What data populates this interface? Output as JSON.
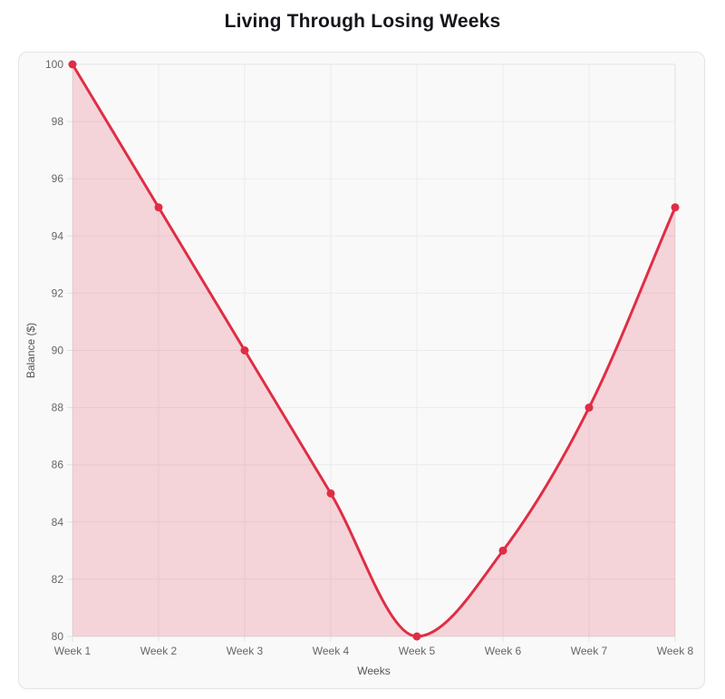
{
  "page": {
    "title": "Living Through Losing Weeks"
  },
  "chart_data": {
    "type": "area",
    "title": "Living Through Losing Weeks",
    "categories": [
      "Week 1",
      "Week 2",
      "Week 3",
      "Week 4",
      "Week 5",
      "Week 6",
      "Week 7",
      "Week 8"
    ],
    "values": [
      100,
      95,
      90,
      85,
      80,
      83,
      88,
      95
    ],
    "series_name": "Balance",
    "xlabel": "Weeks",
    "ylabel": "Balance ($)",
    "ylim": [
      80,
      100
    ],
    "ytick_step": 2,
    "grid": true,
    "legend": "none",
    "curve": "monotone",
    "point_radius": 4.5,
    "line_width": 3,
    "colors": {
      "line": "#e02d44",
      "point": "#e02d44",
      "fill": "rgba(224, 45, 68, 0.18)",
      "grid": "#ebebeb",
      "frame": "#e2e2e2",
      "tick_text": "#666666",
      "axis_title_text": "#555555",
      "title_text": "#15161c",
      "card_bg": "#f9f9f9",
      "card_border": "#e5e5e5"
    }
  }
}
